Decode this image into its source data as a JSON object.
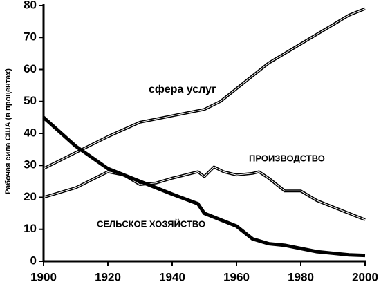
{
  "chart_data": {
    "type": "line",
    "y_label": "Рабочая сила США (в процентах)",
    "xlim": [
      1900,
      2000
    ],
    "xticks": [
      1900,
      1920,
      1940,
      1960,
      1980,
      2000
    ],
    "ylim": [
      0,
      80
    ],
    "yticks": [
      0,
      10,
      20,
      30,
      40,
      50,
      60,
      70,
      80
    ],
    "series": [
      {
        "name": "сфера услуг",
        "color": "#000000",
        "x": [
          1900,
          1910,
          1920,
          1930,
          1940,
          1950,
          1955,
          1960,
          1965,
          1970,
          1975,
          1980,
          1985,
          1990,
          1995,
          2000
        ],
        "values": [
          29,
          34,
          39,
          43.5,
          45.5,
          47.5,
          50,
          54,
          58,
          62,
          65,
          68,
          71,
          74,
          77,
          79
        ]
      },
      {
        "name": "ПРОИЗВОДСТВО",
        "color": "#000000",
        "x": [
          1900,
          1910,
          1920,
          1925,
          1930,
          1935,
          1940,
          1948,
          1950,
          1953,
          1956,
          1960,
          1965,
          1967,
          1970,
          1975,
          1980,
          1985,
          1990,
          1995,
          2000
        ],
        "values": [
          20,
          23,
          28,
          27,
          24,
          24.5,
          26,
          28,
          26.5,
          29.5,
          28,
          27,
          27.5,
          28,
          26,
          22,
          22,
          19,
          17,
          15,
          13
        ]
      },
      {
        "name": "СЕЛЬСКОЕ ХОЗЯЙСТВО",
        "color": "#000000",
        "x": [
          1900,
          1910,
          1920,
          1930,
          1940,
          1948,
          1950,
          1955,
          1960,
          1965,
          1970,
          1975,
          1980,
          1985,
          1990,
          1995,
          2000
        ],
        "values": [
          45,
          36,
          29,
          25,
          21,
          18,
          15,
          13,
          11,
          7,
          5.5,
          5,
          4,
          3,
          2.5,
          2,
          1.8
        ]
      }
    ]
  }
}
